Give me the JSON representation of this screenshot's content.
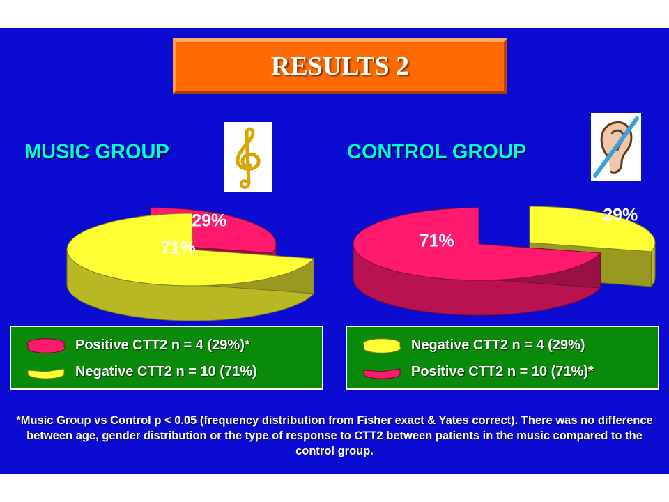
{
  "title": "RESULTS 2",
  "colors": {
    "background": "#0b0bd2",
    "title_box": "#ff6a00",
    "positive": "#ff1a6e",
    "negative": "#ffff33",
    "legend_bg": "#0a8a0a",
    "group_title": "#00ffd0"
  },
  "icons": {
    "music": "treble-clef-icon",
    "control": "crossed-out-ear-icon"
  },
  "groups": {
    "music": {
      "title": "MUSIC GROUP",
      "legend": [
        {
          "label": "Positive CTT2  n = 4 (29%)*",
          "color": "positive"
        },
        {
          "label": "Negative CTT2 n = 10 (71%)",
          "color": "negative"
        }
      ]
    },
    "control": {
      "title": "CONTROL GROUP",
      "legend": [
        {
          "label": "Negative CTT2 n = 4 (29%)",
          "color": "negative"
        },
        {
          "label": "Positive CTT2 n = 10 (71%)*",
          "color": "positive"
        }
      ]
    }
  },
  "chart_data": [
    {
      "type": "pie",
      "title": "MUSIC GROUP",
      "categories": [
        "Positive CTT2",
        "Negative CTT2"
      ],
      "values": [
        29,
        71
      ],
      "labels": [
        "29%",
        "71%"
      ],
      "colors": [
        "#ff1a6e",
        "#ffff33"
      ],
      "exploded": "Positive CTT2"
    },
    {
      "type": "pie",
      "title": "CONTROL GROUP",
      "categories": [
        "Negative CTT2",
        "Positive CTT2"
      ],
      "values": [
        29,
        71
      ],
      "labels": [
        "29%",
        "71%"
      ],
      "colors": [
        "#ffff33",
        "#ff1a6e"
      ],
      "exploded": "Negative CTT2"
    }
  ],
  "footnote": "*Music Group vs Control p < 0.05 (frequency distribution from Fisher exact & Yates correct). There was no difference between age, gender distribution or the type of response to CTT2 between patients in the music compared to the control group."
}
